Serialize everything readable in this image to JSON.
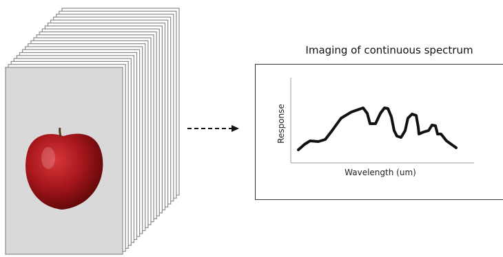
{
  "spectrum_panel": {
    "title": "Imaging of continuous spectrum",
    "y_axis_label": "Response",
    "x_axis_label": "Wavelength (um)"
  }
}
